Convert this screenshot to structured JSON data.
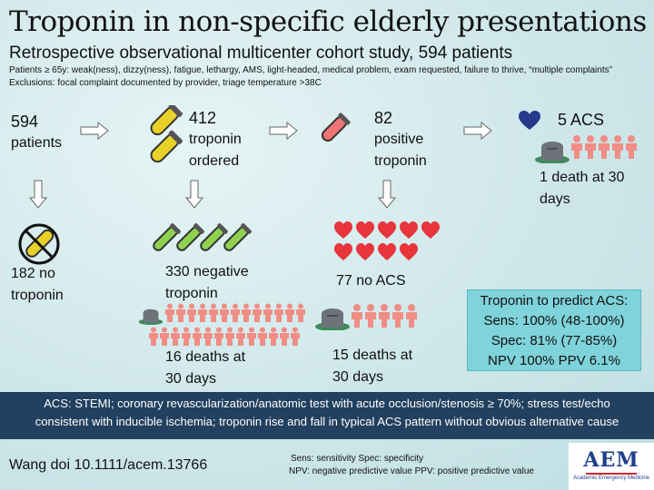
{
  "header": {
    "title": "Troponin in non-specific elderly presentations",
    "subtitle": "Retrospective observational multicenter cohort study, 594 patients",
    "inclusion": "Patients ≥ 65y: weak(ness), dizzy(ness), fatigue, lethargy, AMS, light-headed, medical problem, exam requested, failure to thrive, “multiple complaints”",
    "exclusion": "Exclusions: focal complaint documented by provider, triage temperature >38C"
  },
  "flow": {
    "patients": {
      "number": "594",
      "label": "patients"
    },
    "ordered": {
      "number": "412",
      "label1": "troponin",
      "label2": "ordered"
    },
    "positive": {
      "number": "82",
      "label1": "positive",
      "label2": "troponin"
    },
    "acs": {
      "label": "5 ACS",
      "death1": "1 death at 30",
      "death2": "days"
    },
    "no_troponin": {
      "line1": "182 no",
      "line2": "troponin"
    },
    "negative": {
      "line1": "330 negative",
      "line2": "troponin",
      "deaths1": "16 deaths at",
      "deaths2": "30 days"
    },
    "no_acs": {
      "label": "77 no ACS",
      "deaths1": "15 deaths at",
      "deaths2": "30 days"
    }
  },
  "stats": {
    "title": "Troponin to predict ACS:",
    "sens": "Sens: 100% (48-100%)",
    "spec": "Spec: 81% (77-85%)",
    "npv_ppv": "NPV 100% PPV 6.1%"
  },
  "definition": {
    "line1": "ACS: STEMI; coronary revascularization/anatomic test with acute occlusion/stenosis ≥ 70%; stress test/echo",
    "line2": "consistent with inducible ischemia; troponin rise and fall in typical ACS pattern without obvious alternative cause"
  },
  "footer": {
    "citation": "Wang doi 10.1111/acem.13766",
    "abbrev1": "Sens: sensitivity Spec: specificity",
    "abbrev2": "NPV: negative predictive value PPV: positive predictive value",
    "logo_text": "AEM",
    "logo_sub": "Academic Emergency Medicine"
  },
  "colors": {
    "tube_yellow": "#e8d22a",
    "tube_green": "#8fd14f",
    "tube_red": "#ef7474",
    "heart_red": "#e8343b",
    "heart_blue": "#253a8c",
    "people": "#f08d85",
    "band": "#22405f",
    "stats_box": "#7fd3da"
  }
}
